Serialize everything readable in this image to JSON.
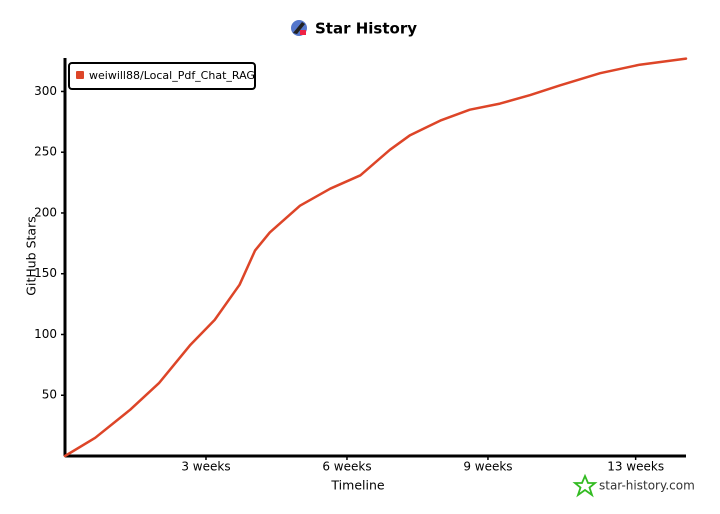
{
  "chart_data": {
    "type": "line",
    "title": "Star History",
    "x_label": "Timeline",
    "y_label": "GitHub Stars",
    "series": [
      {
        "name": "weiwill88/Local_Pdf_Chat_RAG",
        "color": "#dd4528",
        "x": [
          0,
          4.5,
          9.7,
          14,
          18.6,
          22.3,
          26,
          28.3,
          30.5,
          35,
          39.5,
          44,
          48.4,
          51.4,
          55.9,
          60.3,
          64.8,
          69.3,
          73.7,
          79.7,
          85.6,
          92.5
        ],
        "values": [
          0,
          15,
          38,
          60,
          91,
          112,
          141,
          169,
          184,
          206,
          220,
          231,
          252,
          264,
          276,
          285,
          290,
          297,
          305,
          315,
          322,
          327
        ]
      }
    ],
    "xlim": [
      0,
      92.5
    ],
    "xticks": [
      {
        "value": 21,
        "label": "3 weeks"
      },
      {
        "value": 42,
        "label": "6 weeks"
      },
      {
        "value": 63,
        "label": "9 weeks"
      },
      {
        "value": 85,
        "label": "13 weeks"
      }
    ],
    "ylim": [
      0,
      330
    ],
    "yticks": [
      50,
      100,
      150,
      200,
      250,
      300
    ],
    "grid": false,
    "legend": "top-left"
  },
  "watermark": "star-history.com"
}
